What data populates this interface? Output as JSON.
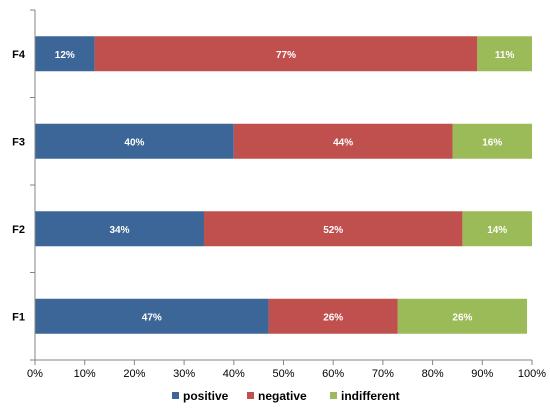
{
  "chart_data": {
    "type": "bar",
    "orientation": "horizontal",
    "stacked": true,
    "categories": [
      "F1",
      "F2",
      "F3",
      "F4"
    ],
    "series": [
      {
        "name": "positive",
        "values": [
          47,
          34,
          40,
          12
        ],
        "labels": [
          "47%",
          "34%",
          "40%",
          "12%"
        ],
        "color": "#3d6698"
      },
      {
        "name": "negative",
        "values": [
          26,
          52,
          44,
          77
        ],
        "labels": [
          "26%",
          "52%",
          "44%",
          "77%"
        ],
        "color": "#c0504d"
      },
      {
        "name": "indifferent",
        "values": [
          26,
          14,
          16,
          11
        ],
        "labels": [
          "26%",
          "14%",
          "16%",
          "11%"
        ],
        "color": "#9bbb59"
      }
    ],
    "xlim": [
      0,
      100
    ],
    "xticks": [
      0,
      10,
      20,
      30,
      40,
      50,
      60,
      70,
      80,
      90,
      100
    ],
    "xtick_labels": [
      "0%",
      "10%",
      "20%",
      "30%",
      "40%",
      "50%",
      "60%",
      "70%",
      "80%",
      "90%",
      "100%"
    ],
    "title": "",
    "xlabel": "",
    "ylabel": "",
    "grid": false,
    "legend_position": "bottom"
  }
}
